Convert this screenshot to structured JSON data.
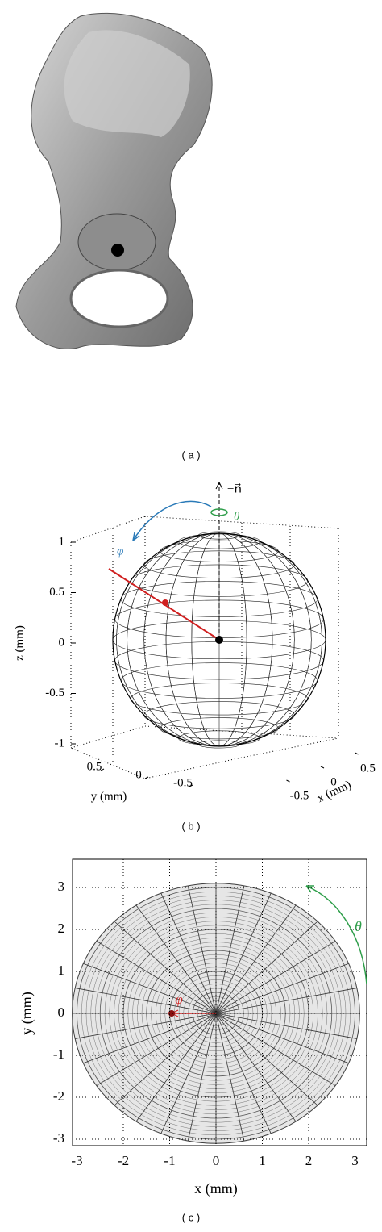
{
  "panel_a": {
    "caption": "( a )"
  },
  "panel_b": {
    "caption": "( b )",
    "z_label": "z (mm)",
    "y_label": "y (mm)",
    "x_label": "x (mm)",
    "z_ticks": [
      1,
      0.5,
      0,
      -0.5,
      -1
    ],
    "y_ticks": [
      0.5,
      0,
      -0.5
    ],
    "x_ticks": [
      -0.5,
      0,
      0.5
    ],
    "normal_label": "−n⃗",
    "theta_label": "θ",
    "phi_label": "φ"
  },
  "panel_c": {
    "caption": "( c )",
    "x_label": "x (mm)",
    "y_label": "y (mm)",
    "x_ticks": [
      -3,
      -2,
      -1,
      0,
      1,
      2,
      3
    ],
    "y_ticks": [
      3,
      2,
      1,
      0,
      -1,
      -2,
      -3
    ],
    "theta_label": "θ",
    "phi_label": "φ"
  }
}
